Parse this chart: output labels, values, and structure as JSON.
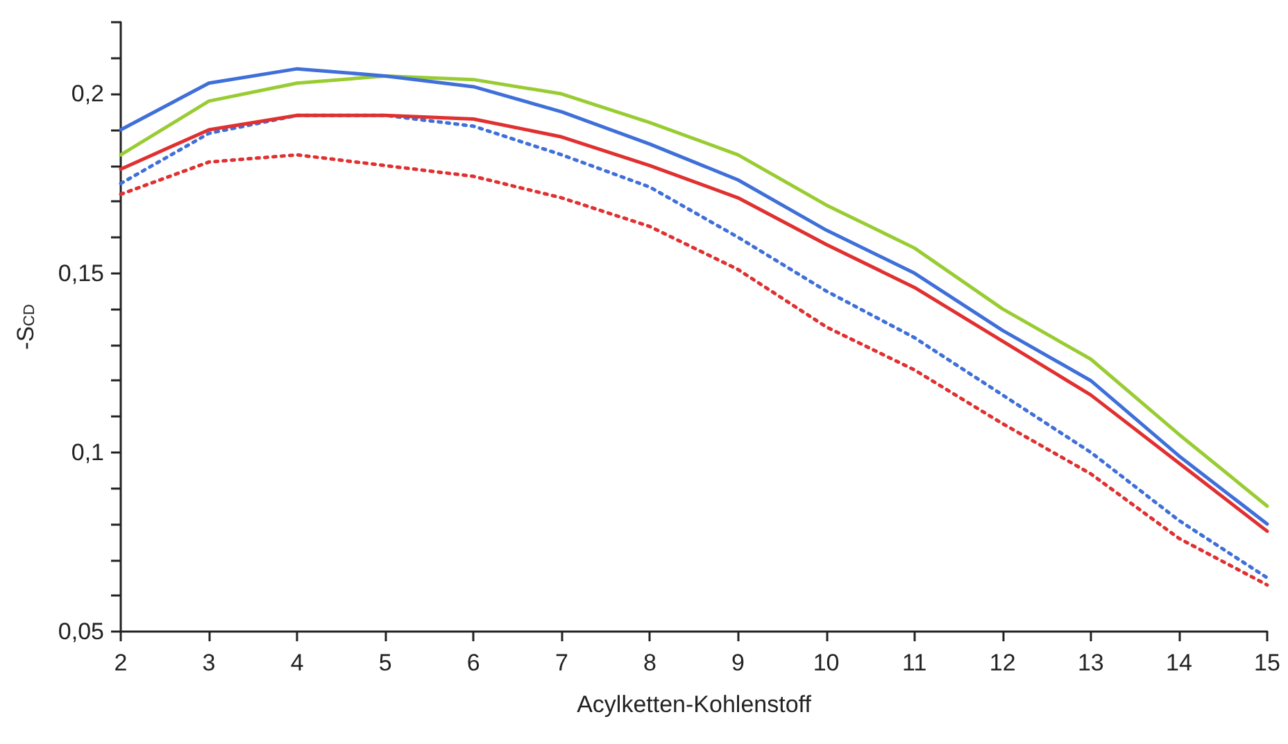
{
  "chart_data": {
    "type": "line",
    "xlabel": "Acylketten-Kohlenstoff",
    "ylabel": "-S$_{CD}$",
    "x": [
      2,
      3,
      4,
      5,
      6,
      7,
      8,
      9,
      10,
      11,
      12,
      13,
      14,
      15
    ],
    "series": [
      {
        "color": "#3f6fd8",
        "line_style": "solid",
        "values": [
          0.19,
          0.203,
          0.207,
          0.205,
          0.202,
          0.195,
          0.186,
          0.176,
          0.162,
          0.15,
          0.134,
          0.12,
          0.099,
          0.08
        ]
      },
      {
        "color": "#99cc33",
        "line_style": "solid",
        "values": [
          0.183,
          0.198,
          0.203,
          0.205,
          0.204,
          0.2,
          0.192,
          0.183,
          0.169,
          0.157,
          0.14,
          0.126,
          0.105,
          0.085
        ]
      },
      {
        "color": "#e03030",
        "line_style": "solid",
        "values": [
          0.179,
          0.19,
          0.194,
          0.194,
          0.193,
          0.188,
          0.18,
          0.171,
          0.158,
          0.146,
          0.131,
          0.116,
          0.097,
          0.078
        ]
      },
      {
        "color": "#3f6fd8",
        "line_style": "dotted",
        "values": [
          0.175,
          0.189,
          0.194,
          0.194,
          0.191,
          0.183,
          0.174,
          0.16,
          0.145,
          0.132,
          0.116,
          0.1,
          0.081,
          0.065
        ]
      },
      {
        "color": "#e03030",
        "line_style": "dotted",
        "values": [
          0.172,
          0.181,
          0.183,
          0.18,
          0.177,
          0.171,
          0.163,
          0.151,
          0.135,
          0.123,
          0.108,
          0.094,
          0.076,
          0.063
        ]
      }
    ],
    "xlim": [
      2,
      15
    ],
    "xticks": [
      2,
      3,
      4,
      5,
      6,
      7,
      8,
      9,
      10,
      11,
      12,
      13,
      14,
      15
    ],
    "ylim": [
      0.05,
      0.22
    ],
    "yticks": [
      {
        "value": 0.05,
        "label": "0,05"
      },
      {
        "value": 0.06,
        "label": null
      },
      {
        "value": 0.07,
        "label": null
      },
      {
        "value": 0.08,
        "label": null
      },
      {
        "value": 0.09,
        "label": null
      },
      {
        "value": 0.1,
        "label": "0,1"
      },
      {
        "value": 0.11,
        "label": null
      },
      {
        "value": 0.12,
        "label": null
      },
      {
        "value": 0.13,
        "label": null
      },
      {
        "value": 0.14,
        "label": null
      },
      {
        "value": 0.15,
        "label": "0,15"
      },
      {
        "value": 0.16,
        "label": null
      },
      {
        "value": 0.17,
        "label": null
      },
      {
        "value": 0.18,
        "label": null
      },
      {
        "value": 0.19,
        "label": null
      },
      {
        "value": 0.2,
        "label": "0,2"
      },
      {
        "value": 0.21,
        "label": null
      },
      {
        "value": 0.22,
        "label": null
      }
    ],
    "marker": "none"
  }
}
